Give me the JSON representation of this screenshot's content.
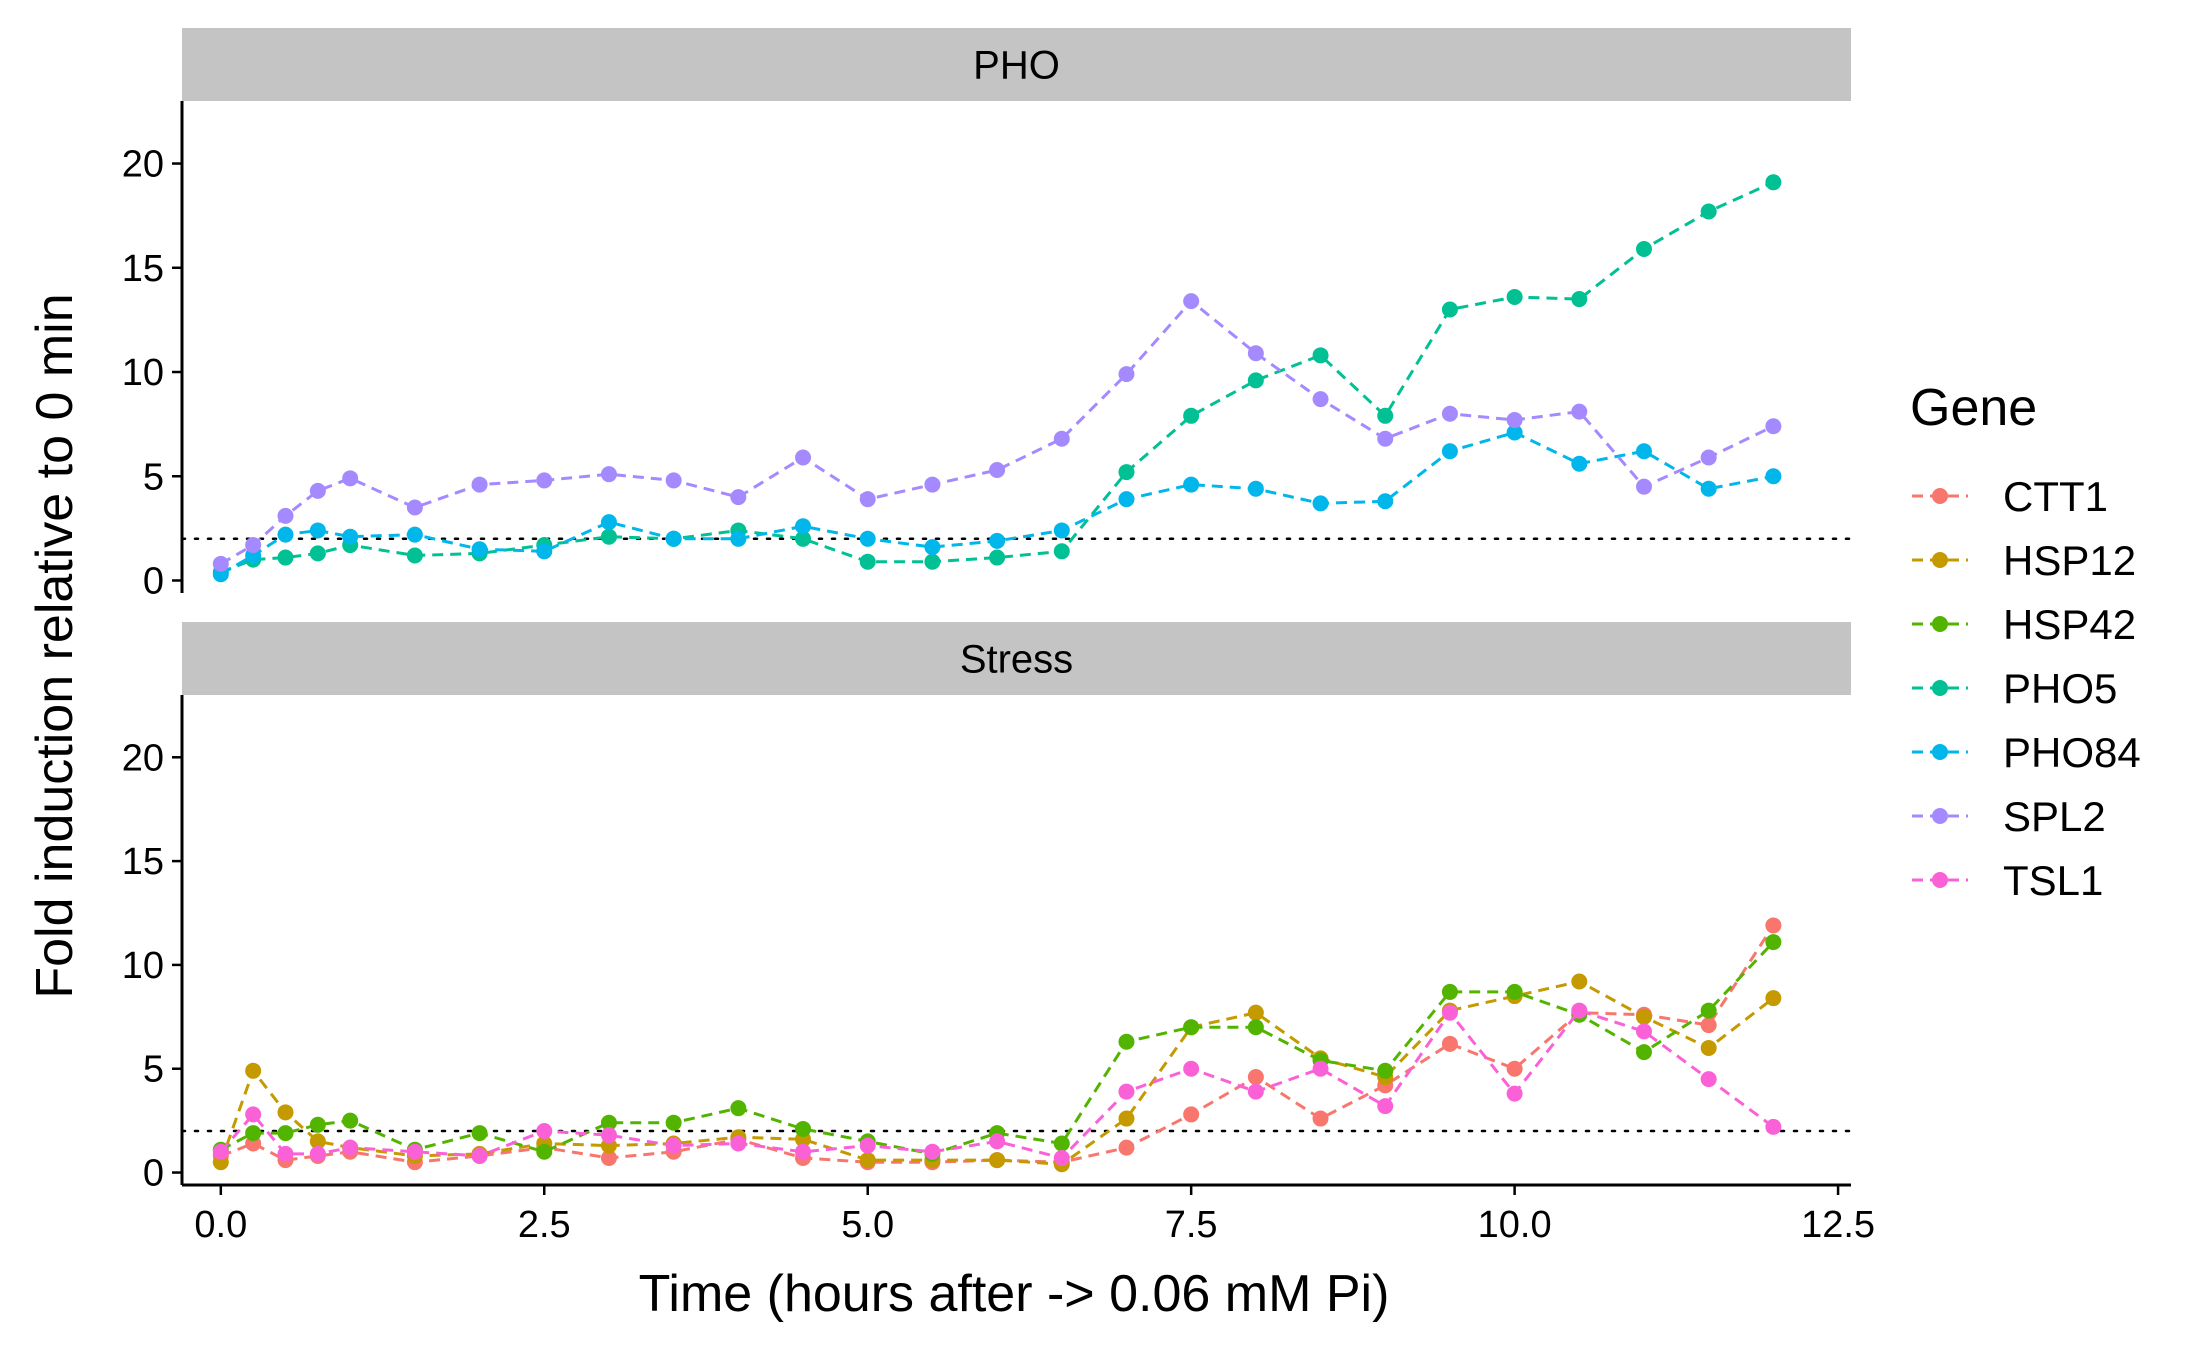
{
  "chart_data": {
    "type": "line",
    "xlabel": "Time (hours after -> 0.06 mM Pi)",
    "ylabel": "Fold induction relative to 0 min",
    "xlim": [
      -0.3,
      12.6
    ],
    "ylim": [
      -0.6,
      23
    ],
    "x_ticks": [
      "0.0",
      "2.5",
      "5.0",
      "7.5",
      "10.0",
      "12.5"
    ],
    "x_tick_values": [
      0,
      2.5,
      5,
      7.5,
      10,
      12.5
    ],
    "y_ticks": [
      "0",
      "5",
      "10",
      "15",
      "20"
    ],
    "y_tick_values": [
      0,
      5,
      10,
      15,
      20
    ],
    "reference_line": 2,
    "line_style": "dashed",
    "legend": {
      "title": "Gene",
      "position": "right"
    },
    "grid": false,
    "x": [
      0,
      0.25,
      0.5,
      0.75,
      1,
      1.5,
      2,
      2.5,
      3,
      3.5,
      4,
      4.5,
      5,
      5.5,
      6,
      6.5,
      7,
      7.5,
      8,
      8.5,
      9,
      9.5,
      10,
      10.5,
      11,
      11.5,
      12
    ],
    "colors": {
      "CTT1": "#F8766D",
      "HSP12": "#C49A00",
      "HSP42": "#53B400",
      "PHO5": "#00C094",
      "PHO84": "#00B6EB",
      "SPL2": "#A58AFF",
      "TSL1": "#FB61D7"
    },
    "legend_order": [
      "CTT1",
      "HSP12",
      "HSP42",
      "PHO5",
      "PHO84",
      "SPL2",
      "TSL1"
    ],
    "panels": [
      {
        "title": "PHO",
        "series": [
          {
            "name": "PHO5",
            "values": [
              0.4,
              1.0,
              1.1,
              1.3,
              1.7,
              1.2,
              1.3,
              1.7,
              2.1,
              2.0,
              2.4,
              2.0,
              0.9,
              0.9,
              1.1,
              1.4,
              5.2,
              7.9,
              9.6,
              10.8,
              7.9,
              13.0,
              13.6,
              13.5,
              15.9,
              17.7,
              19.1
            ]
          },
          {
            "name": "PHO84",
            "values": [
              0.3,
              1.2,
              2.2,
              2.4,
              2.1,
              2.2,
              1.5,
              1.4,
              2.8,
              2.0,
              2.0,
              2.6,
              2.0,
              1.6,
              1.9,
              2.4,
              3.9,
              4.6,
              4.4,
              3.7,
              3.8,
              6.2,
              7.1,
              5.6,
              6.2,
              4.4,
              5.0
            ]
          },
          {
            "name": "SPL2",
            "values": [
              0.8,
              1.7,
              3.1,
              4.3,
              4.9,
              3.5,
              4.6,
              4.8,
              5.1,
              4.8,
              4.0,
              5.9,
              3.9,
              4.6,
              5.3,
              6.8,
              9.9,
              13.4,
              10.9,
              8.7,
              6.8,
              8.0,
              7.7,
              8.1,
              4.5,
              5.9,
              7.4
            ]
          }
        ]
      },
      {
        "title": "Stress",
        "series": [
          {
            "name": "CTT1",
            "values": [
              0.8,
              1.4,
              0.6,
              0.8,
              1.0,
              0.5,
              0.8,
              1.2,
              0.7,
              1.0,
              1.6,
              0.7,
              0.5,
              0.5,
              0.6,
              0.5,
              1.2,
              2.8,
              4.6,
              2.6,
              4.2,
              6.2,
              5.0,
              7.7,
              7.6,
              7.1,
              11.9
            ]
          },
          {
            "name": "HSP12",
            "values": [
              0.5,
              4.9,
              2.9,
              1.5,
              1.2,
              0.8,
              0.9,
              1.4,
              1.3,
              1.4,
              1.7,
              1.6,
              0.6,
              0.6,
              0.6,
              0.4,
              2.6,
              7.0,
              7.7,
              5.5,
              4.6,
              7.8,
              8.5,
              9.2,
              7.5,
              6.0,
              8.4
            ]
          },
          {
            "name": "HSP42",
            "values": [
              1.1,
              1.9,
              1.9,
              2.3,
              2.5,
              1.1,
              1.9,
              1.0,
              2.4,
              2.4,
              3.1,
              2.1,
              1.5,
              0.9,
              1.9,
              1.4,
              6.3,
              7.0,
              7.0,
              5.4,
              4.9,
              8.7,
              8.7,
              7.6,
              5.8,
              7.8,
              11.1
            ]
          },
          {
            "name": "TSL1",
            "values": [
              1.0,
              2.8,
              0.9,
              0.9,
              1.2,
              1.0,
              0.8,
              2.0,
              1.8,
              1.3,
              1.4,
              1.0,
              1.3,
              1.0,
              1.5,
              0.7,
              3.9,
              5.0,
              3.9,
              5.0,
              3.2,
              7.7,
              3.8,
              7.8,
              6.8,
              4.5,
              2.2
            ]
          }
        ]
      }
    ]
  }
}
